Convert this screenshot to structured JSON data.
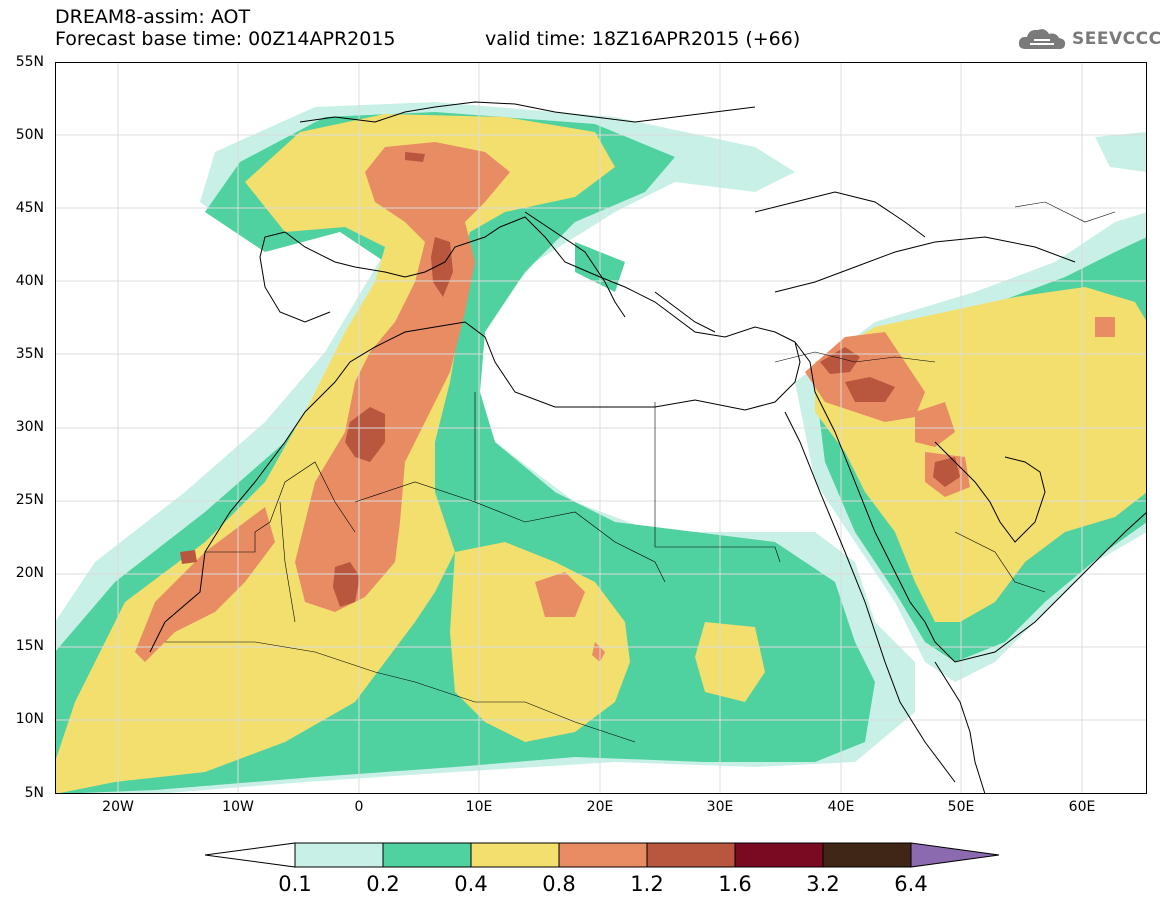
{
  "header": {
    "line1": "DREAM8-assim: AOT",
    "line2": "Forecast base time: 00Z14APR2015",
    "valid": "valid time: 18Z16APR2015 (+66)"
  },
  "logo": {
    "text": "SEEVCCC",
    "icon": "cloud-icon"
  },
  "axes": {
    "y_labels": [
      "55N",
      "50N",
      "45N",
      "40N",
      "35N",
      "30N",
      "25N",
      "20N",
      "15N",
      "10N",
      "5N"
    ],
    "x_labels": [
      "20W",
      "10W",
      "0",
      "10E",
      "20E",
      "30E",
      "40E",
      "50E",
      "60E"
    ]
  },
  "colorbar": {
    "labels": [
      "0.1",
      "0.2",
      "0.4",
      "0.8",
      "1.2",
      "1.6",
      "3.2",
      "6.4"
    ],
    "colors": [
      "#ffffff",
      "#c9f0e6",
      "#4fd1a0",
      "#f2df6e",
      "#e88c64",
      "#b8563e",
      "#7a0a22",
      "#3f2616",
      "#8c6ab0"
    ]
  }
}
